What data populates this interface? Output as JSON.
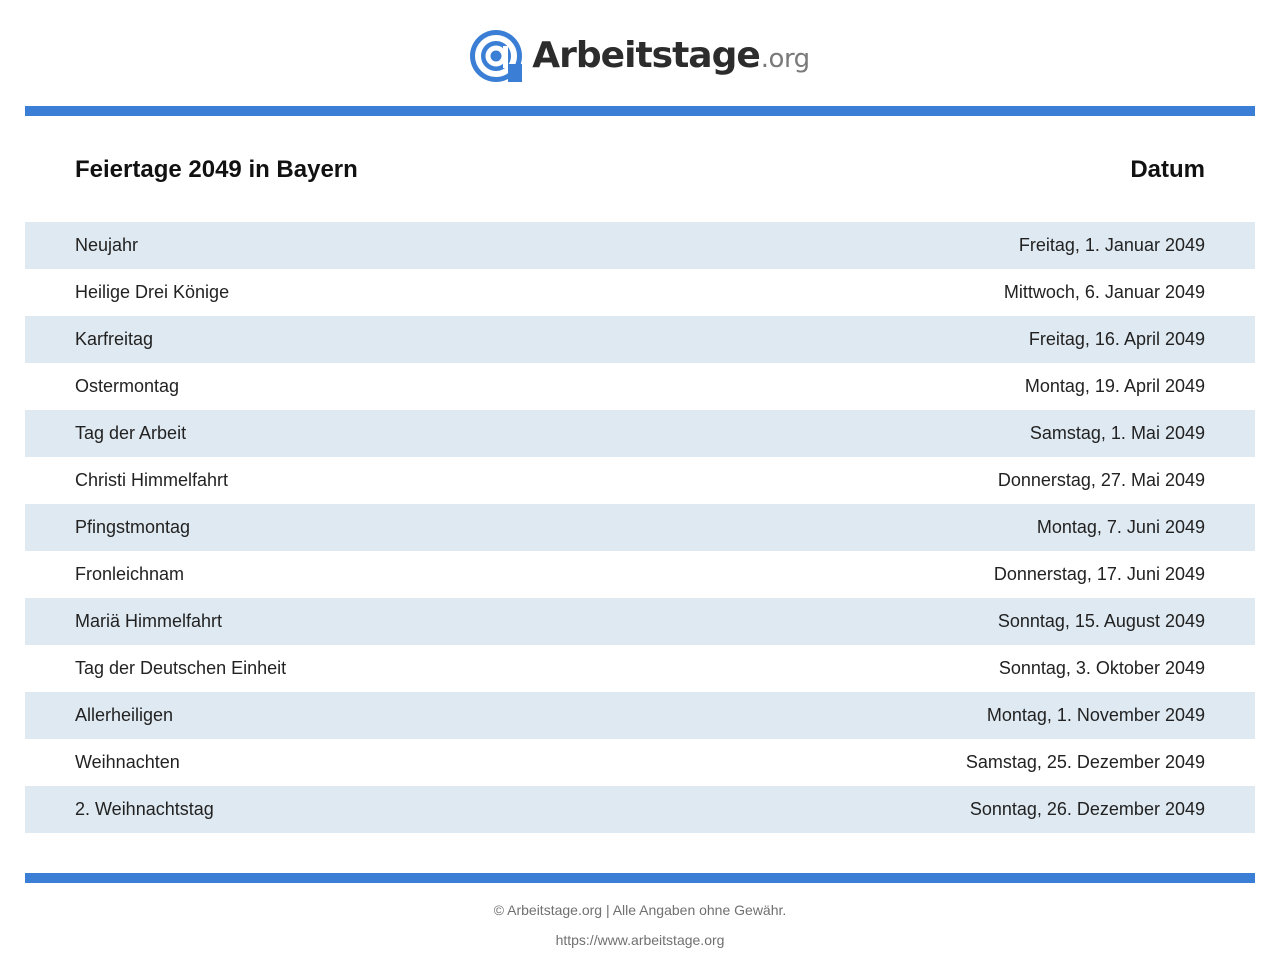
{
  "brand": {
    "name": "Arbeitstage",
    "tld": ".org",
    "icon": "at-sign-icon",
    "accent_color": "#3a7fd5",
    "row_color": "#dfe9f1"
  },
  "table": {
    "title": "Feiertage 2049 in Bayern",
    "date_header": "Datum",
    "rows": [
      {
        "name": "Neujahr",
        "date": "Freitag, 1. Januar 2049"
      },
      {
        "name": "Heilige Drei Könige",
        "date": "Mittwoch, 6. Januar 2049"
      },
      {
        "name": "Karfreitag",
        "date": "Freitag, 16. April 2049"
      },
      {
        "name": "Ostermontag",
        "date": "Montag, 19. April 2049"
      },
      {
        "name": "Tag der Arbeit",
        "date": "Samstag, 1. Mai 2049"
      },
      {
        "name": "Christi Himmelfahrt",
        "date": "Donnerstag, 27. Mai 2049"
      },
      {
        "name": "Pfingstmontag",
        "date": "Montag, 7. Juni 2049"
      },
      {
        "name": "Fronleichnam",
        "date": "Donnerstag, 17. Juni 2049"
      },
      {
        "name": "Mariä Himmelfahrt",
        "date": "Sonntag, 15. August 2049"
      },
      {
        "name": "Tag der Deutschen Einheit",
        "date": "Sonntag, 3. Oktober 2049"
      },
      {
        "name": "Allerheiligen",
        "date": "Montag, 1. November 2049"
      },
      {
        "name": "Weihnachten",
        "date": "Samstag, 25. Dezember 2049"
      },
      {
        "name": "2. Weihnachtstag",
        "date": "Sonntag, 26. Dezember 2049"
      }
    ]
  },
  "footer": {
    "copyright": "© Arbeitstage.org | Alle Angaben ohne Gewähr.",
    "url": "https://www.arbeitstage.org"
  }
}
